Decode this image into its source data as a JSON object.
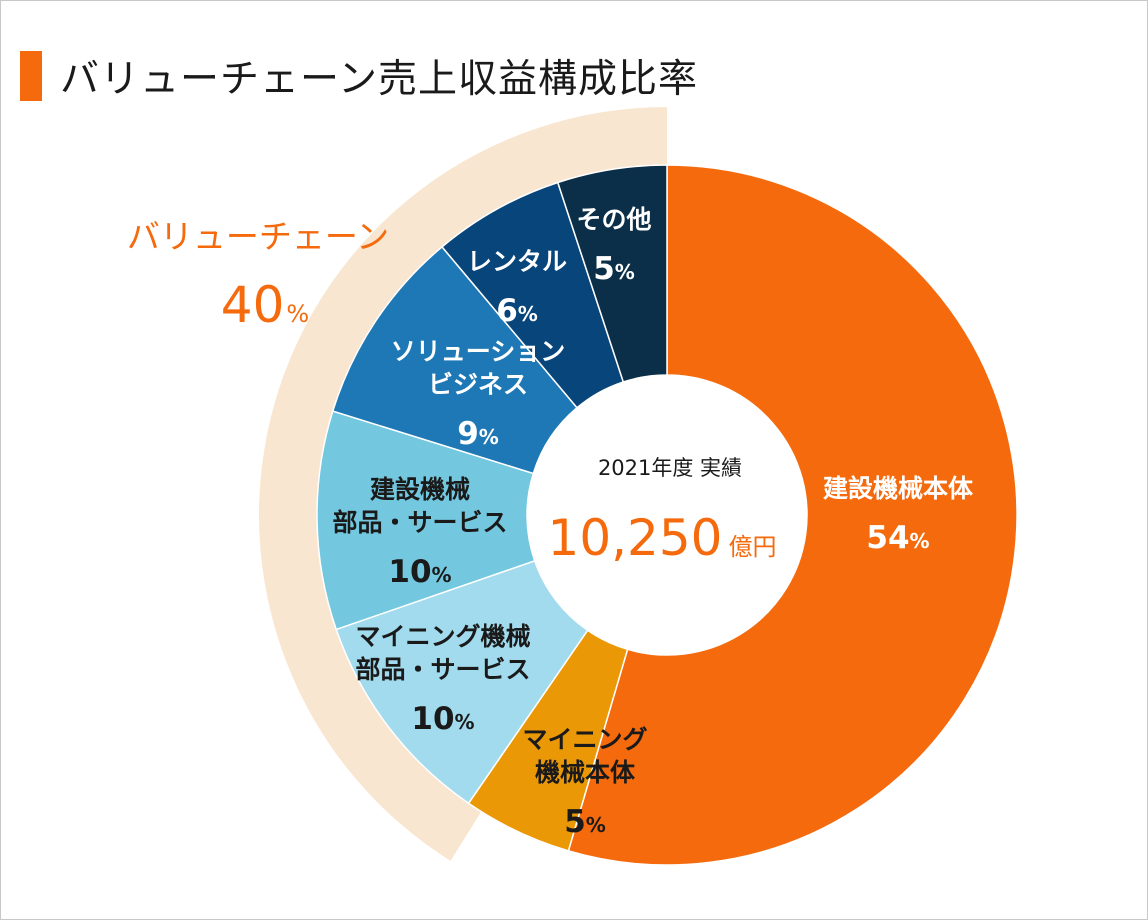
{
  "title": "バリューチェーン売上収益構成比率",
  "center": {
    "caption": "2021年度 実績",
    "value": "10,250",
    "unit": "億円"
  },
  "group": {
    "label": "バリューチェーン",
    "percent": "40",
    "percent_unit": "%"
  },
  "colors": {
    "accent": "#f56a0d",
    "group_band": "#f9e6d1",
    "dark_text": "#1a1a1a"
  },
  "chart_data": {
    "type": "pie",
    "variant": "donut",
    "total": "10,250",
    "total_unit": "億円",
    "categories": [
      "建設機械本体",
      "マイニング機械本体",
      "マイニング機械部品・サービス",
      "建設機械部品・サービス",
      "ソリューションビジネス",
      "レンタル",
      "その他"
    ],
    "values": [
      54,
      5,
      10,
      10,
      9,
      6,
      5
    ],
    "value_unit": "%",
    "colors": [
      "#f56a0d",
      "#eb9806",
      "#a2dbee",
      "#73c8e0",
      "#1e78b5",
      "#08457a",
      "#0c2f49"
    ],
    "segments": [
      {
        "lines": [
          "建設機械本体"
        ],
        "pct": "54",
        "text_color": "#ffffff"
      },
      {
        "lines": [
          "マイニング",
          "機械本体"
        ],
        "pct": "5",
        "text_color": "#1a1a1a"
      },
      {
        "lines": [
          "マイニング機械",
          "部品・サービス"
        ],
        "pct": "10",
        "text_color": "#1a1a1a"
      },
      {
        "lines": [
          "建設機械",
          "部品・サービス"
        ],
        "pct": "10",
        "text_color": "#1a1a1a"
      },
      {
        "lines": [
          "ソリューション",
          "ビジネス"
        ],
        "pct": "9",
        "text_color": "#ffffff"
      },
      {
        "lines": [
          "レンタル"
        ],
        "pct": "6",
        "text_color": "#ffffff"
      },
      {
        "lines": [
          "その他"
        ],
        "pct": "5",
        "text_color": "#ffffff"
      }
    ],
    "group_bracket": {
      "label": "バリューチェーン",
      "value": 40,
      "unit": "%"
    }
  }
}
